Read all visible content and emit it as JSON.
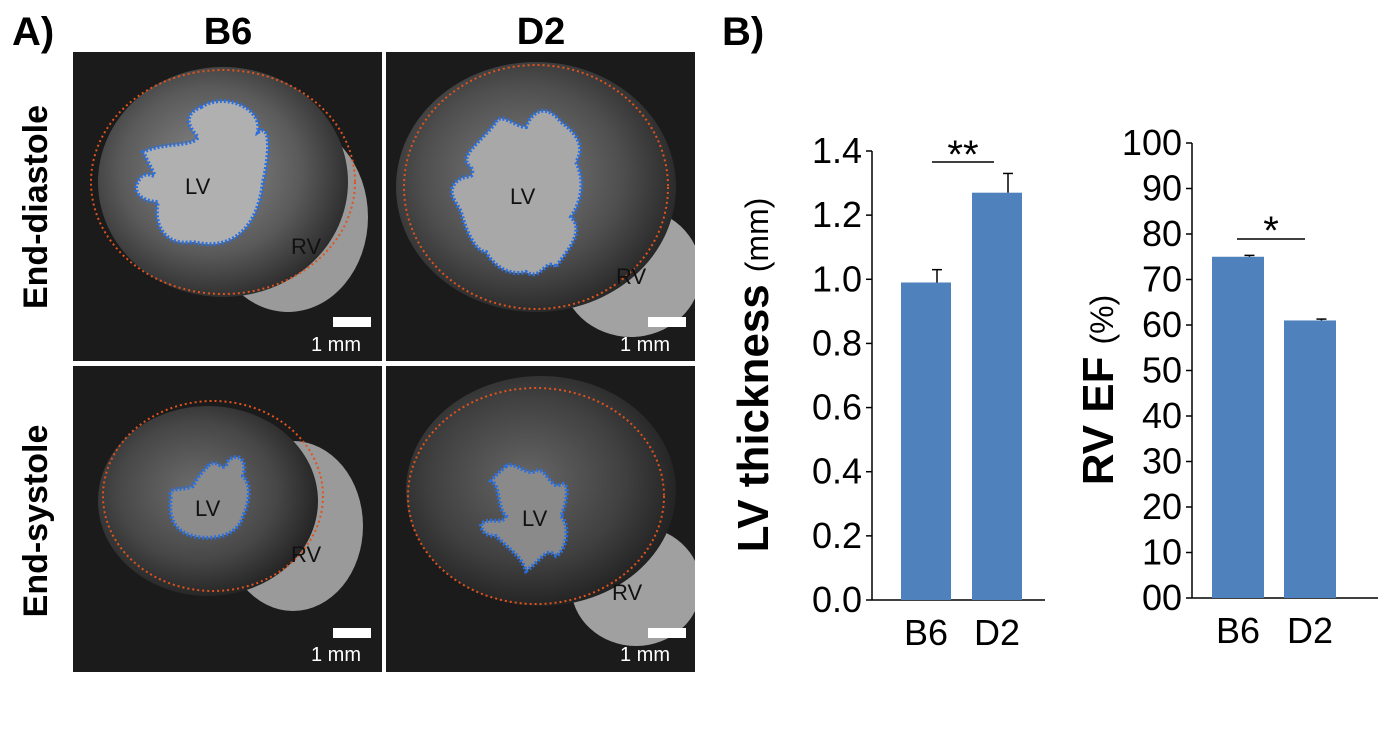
{
  "panels": {
    "a": "A)",
    "b": "B)"
  },
  "columns": [
    "B6",
    "D2"
  ],
  "rows": [
    "End-diastole",
    "End-systole"
  ],
  "images": {
    "lv_label": "LV",
    "rv_label": "RV",
    "scale_bar": "1 mm"
  },
  "colors": {
    "bar": "#4f81bd",
    "lv_contour": "#2a6fe0",
    "epi_contour": "#e0531c"
  },
  "chart_data": [
    {
      "type": "bar",
      "title": "",
      "categories": [
        "B6",
        "D2"
      ],
      "values": [
        0.99,
        1.27
      ],
      "errors": [
        0.04,
        0.06
      ],
      "ylabel_bold": "LV thickness",
      "ylabel_unit": "(mm)",
      "xlabel": "",
      "ylim": [
        0.0,
        1.4
      ],
      "yticks": [
        "0.0",
        "0.2",
        "0.4",
        "0.6",
        "0.8",
        "1.0",
        "1.2",
        "1.4"
      ],
      "significance": "**",
      "grid": false
    },
    {
      "type": "bar",
      "title": "",
      "categories": [
        "B6",
        "D2"
      ],
      "values": [
        75,
        61
      ],
      "errors": [
        0.3,
        0.3
      ],
      "ylabel_bold": "RV EF",
      "ylabel_unit": "(%)",
      "xlabel": "",
      "ylim": [
        0,
        100
      ],
      "yticks": [
        "00",
        "10",
        "20",
        "30",
        "40",
        "50",
        "60",
        "70",
        "80",
        "90",
        "100"
      ],
      "significance": "*",
      "grid": false
    }
  ]
}
